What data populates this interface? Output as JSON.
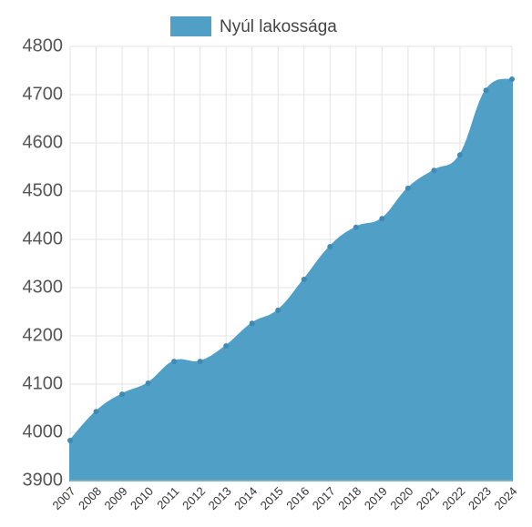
{
  "chart_data": {
    "type": "area",
    "legend_label": "Nyúl lakossága",
    "color": "#4f9fc6",
    "grid": true,
    "categories": [
      "2007",
      "2008",
      "2009",
      "2010",
      "2011",
      "2012",
      "2013",
      "2014",
      "2015",
      "2016",
      "2017",
      "2018",
      "2019",
      "2020",
      "2021",
      "2022",
      "2023",
      "2024"
    ],
    "series": [
      {
        "name": "Nyúl lakossága",
        "color": "#4f9fc6",
        "values": [
          3983,
          4043,
          4079,
          4102,
          4147,
          4147,
          4179,
          4226,
          4253,
          4317,
          4385,
          4425,
          4443,
          4506,
          4543,
          4575,
          4709,
          4732
        ]
      }
    ],
    "ylim": [
      3900,
      4800
    ],
    "yticks": [
      3900,
      4000,
      4100,
      4200,
      4300,
      4400,
      4500,
      4600,
      4700,
      4800
    ]
  }
}
